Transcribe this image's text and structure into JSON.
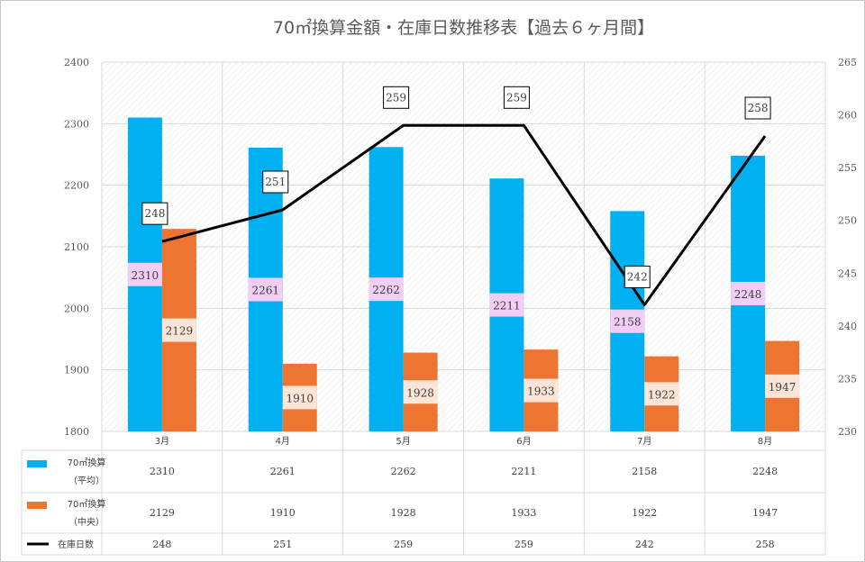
{
  "chart_data": {
    "type": "bar",
    "title": "70㎡換算金額・在庫日数推移表【過去６ヶ月間】",
    "categories": [
      "3月",
      "4月",
      "5月",
      "6月",
      "7月",
      "8月"
    ],
    "ylim": [
      1800,
      2400
    ],
    "y_ticks": [
      1800,
      1900,
      2000,
      2100,
      2200,
      2300,
      2400
    ],
    "y2lim": [
      230,
      265
    ],
    "y2_ticks": [
      230,
      235,
      240,
      245,
      250,
      255,
      260,
      265
    ],
    "grid": true,
    "legend": "data-table",
    "series": [
      {
        "name": "70㎡換算（平均）",
        "legend_lines": [
          "70㎡換算",
          "（平均）"
        ],
        "kind": "bar",
        "axis": "left",
        "color": "#00b0f0",
        "label_bg": "#f2cef6",
        "values": [
          2310,
          2261,
          2262,
          2211,
          2158,
          2248
        ]
      },
      {
        "name": "70㎡換算（中央）",
        "legend_lines": [
          "70㎡換算",
          "（中央）"
        ],
        "kind": "bar",
        "axis": "left",
        "color": "#ed7431",
        "label_bg": "#fce4d6",
        "values": [
          2129,
          1910,
          1928,
          1933,
          1922,
          1947
        ]
      },
      {
        "name": "在庫日数",
        "legend_lines": [
          "在庫日数"
        ],
        "kind": "line",
        "axis": "right",
        "color": "#000000",
        "label_bg": "#ffffff",
        "values": [
          248,
          251,
          259,
          259,
          242,
          258
        ]
      }
    ]
  }
}
